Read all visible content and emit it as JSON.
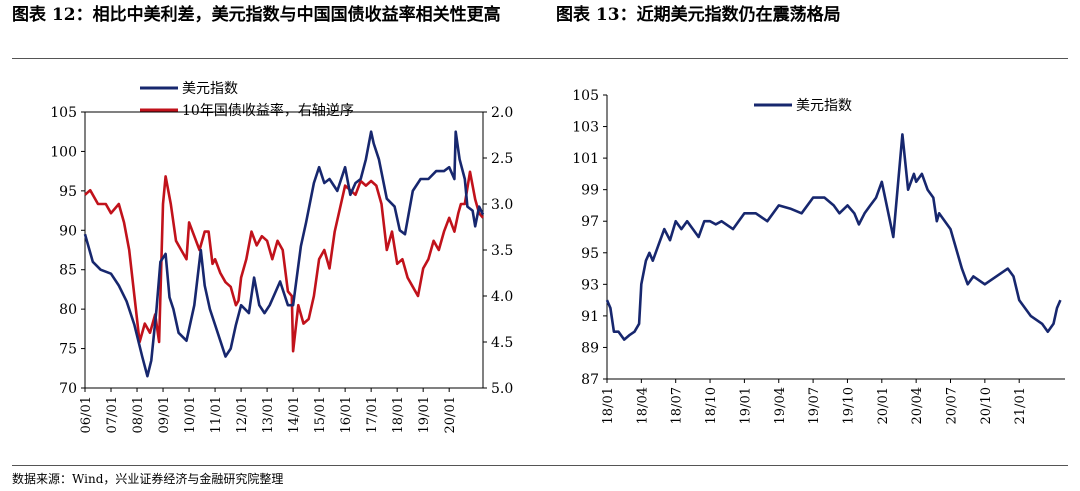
{
  "titles": {
    "left": "图表 12：相比中美利差，美元指数与中国国债收益率相关性更高",
    "right": "图表 13：近期美元指数仍在震荡格局"
  },
  "footer": "数据来源：Wind，兴业证券经济与金融研究院整理",
  "colors": {
    "usd": "#17276e",
    "cn10y": "#c1121b"
  },
  "chart_data": [
    {
      "type": "line",
      "title": "图表 12：相比中美利差，美元指数与中国国债收益率相关性更高",
      "categories": [
        "06/01",
        "07/01",
        "08/01",
        "09/01",
        "10/01",
        "11/01",
        "12/01",
        "13/01",
        "14/01",
        "15/01",
        "16/01",
        "17/01",
        "18/01",
        "19/01",
        "20/01"
      ],
      "ylim_left": [
        70,
        105
      ],
      "yticks_left": [
        "105",
        "100",
        "95",
        "90",
        "85",
        "80",
        "75",
        "70"
      ],
      "ylim_right": [
        2.0,
        5.0
      ],
      "right_axis_inverted": true,
      "yticks_right": [
        "2.0",
        "2.5",
        "3.0",
        "3.5",
        "4.0",
        "4.5",
        "5.0"
      ],
      "legend": [
        "美元指数",
        "10年国债收益率，右轴逆序"
      ],
      "series": [
        {
          "name": "美元指数",
          "axis": "left",
          "x": [
            2006.0,
            2006.3,
            2006.6,
            2007.0,
            2007.3,
            2007.6,
            2007.9,
            2008.2,
            2008.4,
            2008.55,
            2008.75,
            2008.9,
            2009.1,
            2009.25,
            2009.4,
            2009.6,
            2009.9,
            2010.2,
            2010.45,
            2010.6,
            2010.8,
            2011.0,
            2011.2,
            2011.4,
            2011.6,
            2011.8,
            2012.0,
            2012.3,
            2012.5,
            2012.7,
            2012.9,
            2013.1,
            2013.3,
            2013.5,
            2013.8,
            2014.0,
            2014.3,
            2014.5,
            2014.8,
            2015.0,
            2015.2,
            2015.4,
            2015.7,
            2016.0,
            2016.2,
            2016.4,
            2016.6,
            2016.8,
            2017.0,
            2017.1,
            2017.3,
            2017.6,
            2017.9,
            2018.1,
            2018.3,
            2018.6,
            2018.9,
            2019.2,
            2019.5,
            2019.8,
            2020.0,
            2020.2,
            2020.25,
            2020.4,
            2020.6,
            2020.7,
            2020.9,
            2021.0,
            2021.15,
            2021.3
          ],
          "values": [
            89.5,
            86.0,
            85.0,
            84.5,
            83.0,
            81.0,
            78.0,
            74.0,
            71.5,
            73.5,
            80.0,
            86.0,
            87.0,
            81.5,
            80.0,
            77.0,
            76.0,
            80.5,
            87.5,
            83.0,
            80.0,
            78.0,
            76.0,
            74.0,
            75.0,
            78.0,
            80.5,
            79.5,
            84.0,
            80.5,
            79.5,
            80.5,
            82.0,
            83.5,
            80.5,
            80.5,
            88.0,
            91.0,
            96.0,
            98.0,
            96.0,
            96.5,
            95.0,
            98.0,
            94.5,
            96.0,
            96.5,
            99.0,
            102.5,
            101.0,
            99.0,
            94.0,
            93.0,
            90.0,
            89.5,
            95.0,
            96.5,
            96.5,
            97.5,
            97.5,
            98.0,
            96.5,
            102.5,
            99.0,
            96.5,
            93.0,
            92.5,
            90.5,
            93.0,
            92.0
          ]
        },
        {
          "name": "10年国债收益率，右轴逆序",
          "axis": "right",
          "x": [
            2006.0,
            2006.2,
            2006.5,
            2006.8,
            2007.0,
            2007.3,
            2007.5,
            2007.7,
            2007.9,
            2008.1,
            2008.3,
            2008.5,
            2008.7,
            2008.85,
            2009.0,
            2009.1,
            2009.3,
            2009.5,
            2009.7,
            2009.9,
            2010.0,
            2010.2,
            2010.4,
            2010.6,
            2010.75,
            2010.9,
            2011.0,
            2011.2,
            2011.4,
            2011.6,
            2011.8,
            2011.9,
            2012.0,
            2012.2,
            2012.4,
            2012.6,
            2012.8,
            2013.0,
            2013.2,
            2013.4,
            2013.6,
            2013.8,
            2013.95,
            2014.0,
            2014.2,
            2014.4,
            2014.6,
            2014.8,
            2015.0,
            2015.2,
            2015.4,
            2015.6,
            2015.8,
            2016.0,
            2016.2,
            2016.4,
            2016.6,
            2016.8,
            2017.0,
            2017.2,
            2017.4,
            2017.6,
            2017.8,
            2018.0,
            2018.2,
            2018.4,
            2018.6,
            2018.8,
            2019.0,
            2019.2,
            2019.4,
            2019.6,
            2019.8,
            2020.0,
            2020.2,
            2020.35,
            2020.45,
            2020.6,
            2020.8,
            2021.0,
            2021.15,
            2021.3
          ],
          "values": [
            2.9,
            2.85,
            3.0,
            3.0,
            3.1,
            3.0,
            3.2,
            3.5,
            4.0,
            4.5,
            4.3,
            4.4,
            4.2,
            4.5,
            3.0,
            2.7,
            3.0,
            3.4,
            3.5,
            3.6,
            3.2,
            3.35,
            3.5,
            3.3,
            3.3,
            3.65,
            3.6,
            3.75,
            3.85,
            3.9,
            4.1,
            4.05,
            3.8,
            3.6,
            3.3,
            3.45,
            3.35,
            3.4,
            3.6,
            3.4,
            3.5,
            3.95,
            4.0,
            4.6,
            4.1,
            4.3,
            4.25,
            4.0,
            3.6,
            3.5,
            3.7,
            3.3,
            3.05,
            2.8,
            2.85,
            2.9,
            2.75,
            2.8,
            2.75,
            2.8,
            3.0,
            3.5,
            3.3,
            3.65,
            3.6,
            3.8,
            3.9,
            4.0,
            3.7,
            3.6,
            3.4,
            3.5,
            3.3,
            3.15,
            3.3,
            3.1,
            3.0,
            3.0,
            2.65,
            2.95,
            3.1,
            3.15
          ]
        }
      ]
    },
    {
      "type": "line",
      "title": "图表 13：近期美元指数仍在震荡格局",
      "categories": [
        "18/01",
        "18/04",
        "18/07",
        "18/10",
        "19/01",
        "19/04",
        "19/07",
        "19/10",
        "20/01",
        "20/04",
        "20/07",
        "20/10",
        "21/01"
      ],
      "ylim": [
        87,
        105
      ],
      "yticks": [
        "105",
        "103",
        "101",
        "99",
        "97",
        "95",
        "93",
        "91",
        "89",
        "87"
      ],
      "legend": [
        "美元指数"
      ],
      "series": [
        {
          "name": "美元指数",
          "x": [
            0,
            0.3,
            0.6,
            1.0,
            1.5,
            2.0,
            2.4,
            2.8,
            3.0,
            3.4,
            3.7,
            4.0,
            4.5,
            5.0,
            5.5,
            6.0,
            6.5,
            7.0,
            7.5,
            8.0,
            8.5,
            9.0,
            9.5,
            10.0,
            11.0,
            12.0,
            13.0,
            14.0,
            15.0,
            16.0,
            17.0,
            18.0,
            19.0,
            19.8,
            20.3,
            21.0,
            21.6,
            22.0,
            22.5,
            23.0,
            23.5,
            24.0,
            25.0,
            25.8,
            26.3,
            26.8,
            27.0,
            27.5,
            28.0,
            28.5,
            28.8,
            29.0,
            30.0,
            31.0,
            31.5,
            32.0,
            33.0,
            34.0,
            35.0,
            35.5,
            36.0,
            37.0,
            38.0,
            38.5,
            39.0,
            39.3,
            39.6
          ],
          "values": [
            92.0,
            91.5,
            90.0,
            90.0,
            89.5,
            89.8,
            90.0,
            90.5,
            93.0,
            94.5,
            95.0,
            94.5,
            95.5,
            96.5,
            95.8,
            97.0,
            96.5,
            97.0,
            96.5,
            96.0,
            97.0,
            97.0,
            96.8,
            97.0,
            96.5,
            97.5,
            97.5,
            97.0,
            98.0,
            97.8,
            97.5,
            98.5,
            98.5,
            98.0,
            97.5,
            98.0,
            97.5,
            96.8,
            97.5,
            98.0,
            98.5,
            99.5,
            96.0,
            102.5,
            99.0,
            100.0,
            99.5,
            100.0,
            99.0,
            98.5,
            97.0,
            97.5,
            96.5,
            94.0,
            93.0,
            93.5,
            93.0,
            93.5,
            94.0,
            93.5,
            92.0,
            91.0,
            90.5,
            90.0,
            90.5,
            91.5,
            92.0
          ]
        }
      ]
    }
  ]
}
